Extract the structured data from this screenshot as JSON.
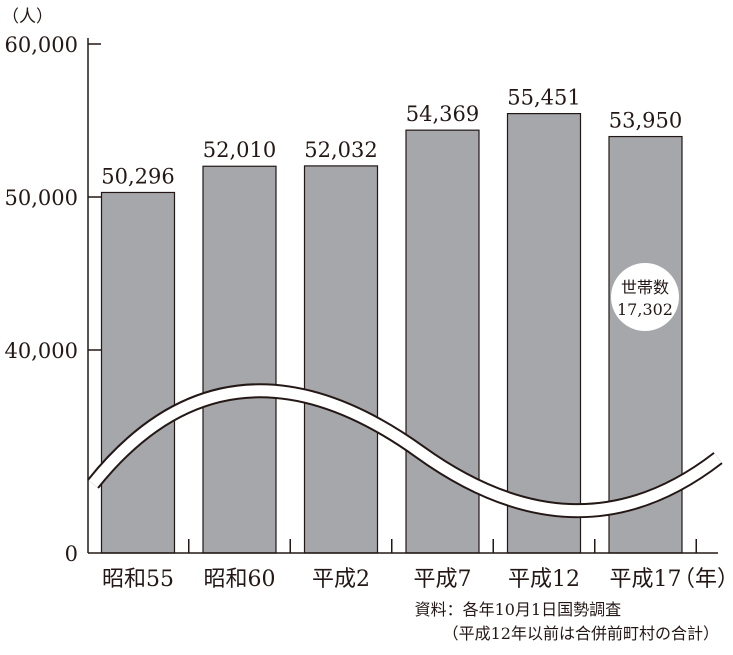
{
  "chart_data": {
    "type": "bar",
    "unit_label": "（人）",
    "x_unit_label": "（年）",
    "categories": [
      "昭和55",
      "昭和60",
      "平成2",
      "平成7",
      "平成12",
      "平成17"
    ],
    "series": [
      {
        "values": [
          50296,
          52010,
          52032,
          54369,
          55451,
          53950
        ]
      }
    ],
    "value_labels": [
      "50,296",
      "52,010",
      "52,032",
      "54,369",
      "55,451",
      "53,950"
    ],
    "y_ticks": [
      {
        "value": 0,
        "label": "0"
      },
      {
        "value": 40000,
        "label": "40,000"
      },
      {
        "value": 50000,
        "label": "50,000"
      },
      {
        "value": 60000,
        "label": "60,000"
      }
    ],
    "axis_break": true,
    "ylim": [
      0,
      60000
    ],
    "annotation": {
      "title": "世帯数",
      "value": "17,302"
    },
    "bar_color": "#a6a7aa",
    "grid": false,
    "legend": "none"
  },
  "source": {
    "line1": "資料：各年10月1日国勢調査",
    "line2": "（平成12年以前は合併前町村の合計）"
  }
}
